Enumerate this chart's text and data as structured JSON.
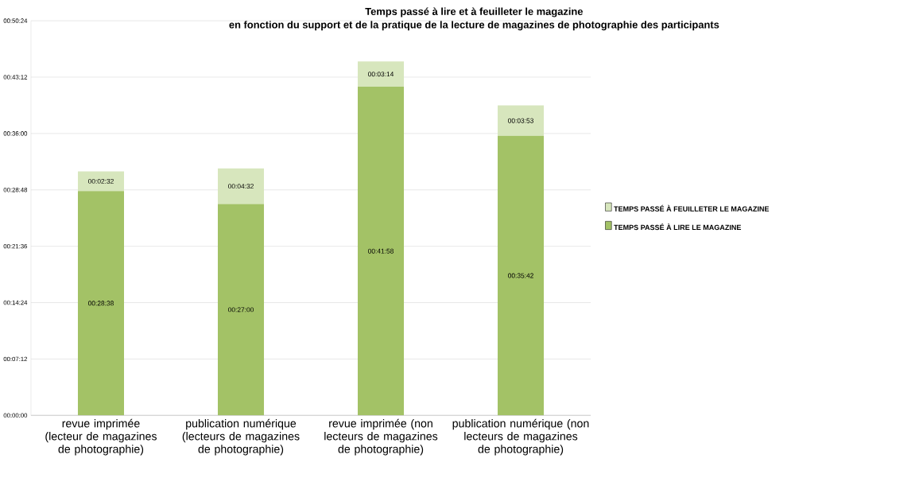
{
  "chart_data": {
    "type": "bar",
    "stacked": true,
    "title": "Temps passé à lire et à feuilleter le magazine",
    "subtitle": "en fonction du support et de la pratique de la lecture de magazines de photographie des participants",
    "categories": [
      "revue imprimée (lecteur de magazines de photographie)",
      "publication numérique (lecteurs de magazines de photographie)",
      "revue imprimée (non lecteurs de magazines de photographie)",
      "publication numérique (non lecteurs de magazines de photographie)"
    ],
    "series": [
      {
        "name": "TEMPS PASSÉ À LIRE LE MAGAZINE",
        "color": "#a3c266",
        "values": [
          1718,
          1620,
          2518,
          2142
        ],
        "value_labels": [
          "00:28:38",
          "00:27:00",
          "00:41:58",
          "00:35:42"
        ]
      },
      {
        "name": "TEMPS PASSÉ À FEUILLETER LE MAGAZINE",
        "color": "#d7e6bd",
        "values": [
          152,
          272,
          194,
          233
        ],
        "value_labels": [
          "00:02:32",
          "00:04:32",
          "00:03:14",
          "00:03:53"
        ]
      }
    ],
    "ylim": [
      0,
      3024
    ],
    "yticks": [
      {
        "value": 0,
        "label": "00:00:00"
      },
      {
        "value": 432,
        "label": "00:07:12"
      },
      {
        "value": 864,
        "label": "00:14:24"
      },
      {
        "value": 1296,
        "label": "00:21:36"
      },
      {
        "value": 1728,
        "label": "00:28:48"
      },
      {
        "value": 2160,
        "label": "00:36:00"
      },
      {
        "value": 2592,
        "label": "00:43:12"
      },
      {
        "value": 3024,
        "label": "00:50:24"
      }
    ],
    "grid": "y",
    "legend": "right"
  }
}
